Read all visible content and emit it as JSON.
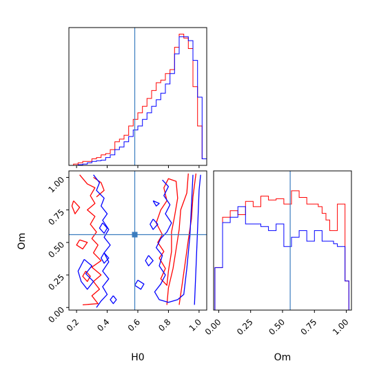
{
  "chart_data": [
    {
      "type": "histogram",
      "panel": "H0 marginal",
      "x_range": [
        0.15,
        1.05
      ],
      "truth_line": 0.58,
      "bin_edges": [
        0.18,
        0.21,
        0.24,
        0.27,
        0.3,
        0.33,
        0.36,
        0.39,
        0.42,
        0.45,
        0.48,
        0.51,
        0.54,
        0.57,
        0.6,
        0.63,
        0.66,
        0.69,
        0.72,
        0.75,
        0.78,
        0.81,
        0.84,
        0.87,
        0.9,
        0.93,
        0.96,
        0.99,
        1.02,
        1.05
      ],
      "series": [
        {
          "color": "#ff0000",
          "values": [
            0.01,
            0.02,
            0.03,
            0.03,
            0.05,
            0.06,
            0.08,
            0.09,
            0.12,
            0.18,
            0.2,
            0.23,
            0.3,
            0.35,
            0.4,
            0.45,
            0.51,
            0.57,
            0.63,
            0.65,
            0.7,
            0.73,
            0.9,
            1.0,
            0.97,
            0.89,
            0.6,
            0.3,
            0.05
          ]
        },
        {
          "color": "#0000ff",
          "values": [
            0.0,
            0.005,
            0.01,
            0.02,
            0.03,
            0.035,
            0.04,
            0.06,
            0.08,
            0.12,
            0.14,
            0.18,
            0.22,
            0.27,
            0.3,
            0.35,
            0.4,
            0.45,
            0.5,
            0.55,
            0.62,
            0.7,
            0.85,
            0.98,
            0.98,
            0.95,
            0.8,
            0.52,
            0.05
          ]
        }
      ]
    },
    {
      "type": "contour",
      "panel": "H0 vs Om",
      "x_range": [
        0.15,
        1.05
      ],
      "y_range": [
        -0.02,
        1.05
      ],
      "xlabel": "H0",
      "ylabel": "Om",
      "x_ticks": [
        0.2,
        0.4,
        0.6,
        0.8,
        1.0
      ],
      "x_tick_labels": [
        "0.2",
        "0.4",
        "0.6",
        "0.8",
        "1.0"
      ],
      "y_ticks": [
        0.0,
        0.25,
        0.5,
        0.75,
        1.0
      ],
      "y_tick_labels": [
        "0.00",
        "0.25",
        "0.50",
        "0.75",
        "1.00"
      ],
      "truth_point": {
        "x": 0.58,
        "y": 0.56
      },
      "contours": [
        {
          "color": "#ff0000",
          "points": [
            [
              0.22,
              1.02
            ],
            [
              0.27,
              0.95
            ],
            [
              0.32,
              0.92
            ],
            [
              0.29,
              0.86
            ],
            [
              0.32,
              0.8
            ],
            [
              0.27,
              0.75
            ],
            [
              0.32,
              0.7
            ],
            [
              0.29,
              0.64
            ],
            [
              0.33,
              0.58
            ],
            [
              0.3,
              0.53
            ],
            [
              0.34,
              0.48
            ],
            [
              0.31,
              0.42
            ],
            [
              0.36,
              0.36
            ],
            [
              0.3,
              0.31
            ],
            [
              0.36,
              0.25
            ],
            [
              0.31,
              0.2
            ],
            [
              0.35,
              0.14
            ],
            [
              0.3,
              0.09
            ],
            [
              0.34,
              0.03
            ],
            [
              0.24,
              0.02
            ]
          ]
        },
        {
          "color": "#ff0000",
          "points": [
            [
              0.31,
              1.0
            ],
            [
              0.36,
              0.96
            ],
            [
              0.38,
              0.9
            ],
            [
              0.33,
              0.85
            ]
          ]
        },
        {
          "color": "#ff0000",
          "points": [
            [
              0.18,
              0.82
            ],
            [
              0.22,
              0.77
            ],
            [
              0.19,
              0.72
            ],
            [
              0.17,
              0.78
            ],
            [
              0.18,
              0.82
            ]
          ]
        },
        {
          "color": "#ff0000",
          "points": [
            [
              0.26,
              0.28
            ],
            [
              0.29,
              0.24
            ],
            [
              0.27,
              0.2
            ],
            [
              0.24,
              0.24
            ],
            [
              0.26,
              0.28
            ]
          ]
        },
        {
          "color": "#ff0000",
          "points": [
            [
              0.22,
              0.52
            ],
            [
              0.27,
              0.5
            ],
            [
              0.24,
              0.45
            ],
            [
              0.2,
              0.48
            ],
            [
              0.22,
              0.52
            ]
          ]
        },
        {
          "color": "#ff0000",
          "points": [
            [
              0.79,
              0.02
            ],
            [
              0.8,
              0.15
            ],
            [
              0.83,
              0.3
            ],
            [
              0.85,
              0.45
            ],
            [
              0.87,
              0.6
            ],
            [
              0.88,
              0.75
            ],
            [
              0.92,
              0.88
            ],
            [
              0.93,
              1.03
            ]
          ]
        },
        {
          "color": "#ff0000",
          "points": [
            [
              0.87,
              0.02
            ],
            [
              0.89,
              0.18
            ],
            [
              0.91,
              0.35
            ],
            [
              0.93,
              0.52
            ],
            [
              0.95,
              0.68
            ],
            [
              0.96,
              0.85
            ],
            [
              0.98,
              1.03
            ]
          ]
        },
        {
          "color": "#ff0000",
          "points": [
            [
              0.72,
              0.65
            ],
            [
              0.76,
              0.56
            ],
            [
              0.73,
              0.5
            ],
            [
              0.77,
              0.43
            ],
            [
              0.74,
              0.38
            ],
            [
              0.78,
              0.3
            ],
            [
              0.75,
              0.22
            ],
            [
              0.79,
              0.17
            ],
            [
              0.8,
              0.28
            ],
            [
              0.82,
              0.43
            ],
            [
              0.82,
              0.58
            ],
            [
              0.84,
              0.7
            ],
            [
              0.86,
              0.84
            ],
            [
              0.85,
              0.97
            ],
            [
              0.8,
              0.99
            ],
            [
              0.77,
              0.92
            ],
            [
              0.79,
              0.82
            ],
            [
              0.75,
              0.75
            ],
            [
              0.72,
              0.65
            ]
          ]
        },
        {
          "color": "#0000ff",
          "points": [
            [
              0.31,
              1.02
            ],
            [
              0.35,
              0.96
            ],
            [
              0.33,
              0.9
            ],
            [
              0.38,
              0.84
            ],
            [
              0.36,
              0.78
            ],
            [
              0.4,
              0.72
            ],
            [
              0.37,
              0.67
            ],
            [
              0.41,
              0.6
            ],
            [
              0.38,
              0.54
            ],
            [
              0.42,
              0.48
            ],
            [
              0.38,
              0.42
            ],
            [
              0.41,
              0.35
            ],
            [
              0.37,
              0.28
            ],
            [
              0.41,
              0.22
            ],
            [
              0.37,
              0.16
            ],
            [
              0.4,
              0.1
            ],
            [
              0.36,
              0.05
            ],
            [
              0.33,
              0.0
            ]
          ]
        },
        {
          "color": "#0000ff",
          "points": [
            [
              0.25,
              0.37
            ],
            [
              0.3,
              0.32
            ],
            [
              0.26,
              0.26
            ],
            [
              0.31,
              0.2
            ],
            [
              0.27,
              0.14
            ],
            [
              0.23,
              0.2
            ],
            [
              0.21,
              0.28
            ],
            [
              0.25,
              0.37
            ]
          ]
        },
        {
          "color": "#0000ff",
          "points": [
            [
              0.37,
              0.65
            ],
            [
              0.4,
              0.61
            ],
            [
              0.38,
              0.57
            ],
            [
              0.35,
              0.61
            ],
            [
              0.37,
              0.65
            ]
          ]
        },
        {
          "color": "#0000ff",
          "points": [
            [
              0.38,
              0.42
            ],
            [
              0.41,
              0.38
            ],
            [
              0.38,
              0.34
            ],
            [
              0.36,
              0.38
            ],
            [
              0.38,
              0.42
            ]
          ]
        },
        {
          "color": "#0000ff",
          "points": [
            [
              0.44,
              0.09
            ],
            [
              0.46,
              0.06
            ],
            [
              0.44,
              0.03
            ],
            [
              0.42,
              0.06
            ],
            [
              0.44,
              0.09
            ]
          ]
        },
        {
          "color": "#0000ff",
          "points": [
            [
              0.76,
              0.98
            ],
            [
              0.8,
              0.93
            ],
            [
              0.77,
              0.86
            ],
            [
              0.81,
              0.79
            ],
            [
              0.78,
              0.72
            ],
            [
              0.82,
              0.65
            ],
            [
              0.79,
              0.58
            ],
            [
              0.75,
              0.53
            ],
            [
              0.72,
              0.46
            ],
            [
              0.76,
              0.4
            ],
            [
              0.74,
              0.32
            ],
            [
              0.78,
              0.25
            ],
            [
              0.75,
              0.18
            ],
            [
              0.71,
              0.12
            ],
            [
              0.74,
              0.06
            ],
            [
              0.8,
              0.04
            ],
            [
              0.86,
              0.06
            ],
            [
              0.9,
              0.1
            ],
            [
              0.92,
              0.3
            ],
            [
              0.94,
              0.55
            ],
            [
              0.95,
              0.78
            ],
            [
              0.96,
              1.02
            ]
          ]
        },
        {
          "color": "#0000ff",
          "points": [
            [
              0.6,
              0.21
            ],
            [
              0.64,
              0.18
            ],
            [
              0.62,
              0.14
            ],
            [
              0.58,
              0.17
            ],
            [
              0.6,
              0.21
            ]
          ]
        },
        {
          "color": "#0000ff",
          "points": [
            [
              0.67,
              0.4
            ],
            [
              0.7,
              0.36
            ],
            [
              0.67,
              0.32
            ],
            [
              0.65,
              0.36
            ],
            [
              0.67,
              0.4
            ]
          ]
        },
        {
          "color": "#0000ff",
          "points": [
            [
              0.7,
              0.68
            ],
            [
              0.73,
              0.64
            ],
            [
              0.7,
              0.6
            ],
            [
              0.68,
              0.64
            ],
            [
              0.7,
              0.68
            ]
          ]
        },
        {
          "color": "#0000ff",
          "points": [
            [
              0.7,
              0.82
            ],
            [
              0.74,
              0.8
            ],
            [
              0.72,
              0.78
            ],
            [
              0.7,
              0.82
            ]
          ]
        },
        {
          "color": "#0000ff",
          "points": [
            [
              0.97,
              0.02
            ],
            [
              0.98,
              0.3
            ],
            [
              0.99,
              0.6
            ],
            [
              1.0,
              0.9
            ],
            [
              1.01,
              1.02
            ]
          ]
        }
      ]
    },
    {
      "type": "histogram",
      "panel": "Om marginal",
      "xlabel": "Om",
      "x_range": [
        -0.04,
        1.04
      ],
      "x_ticks": [
        0.0,
        0.25,
        0.5,
        0.75,
        1.0
      ],
      "x_tick_labels": [
        "0.00",
        "0.25",
        "0.50",
        "0.75",
        "1.00"
      ],
      "truth_line": 0.56,
      "bin_edges": [
        -0.03,
        0.0,
        0.03,
        0.06,
        0.09,
        0.12,
        0.15,
        0.18,
        0.21,
        0.24,
        0.27,
        0.3,
        0.33,
        0.36,
        0.39,
        0.42,
        0.45,
        0.48,
        0.51,
        0.54,
        0.57,
        0.6,
        0.63,
        0.66,
        0.69,
        0.72,
        0.75,
        0.78,
        0.81,
        0.84,
        0.87,
        0.9,
        0.93,
        0.96,
        0.99,
        1.02
      ],
      "series": [
        {
          "color": "#ff0000",
          "values": [
            0.32,
            0.32,
            0.7,
            0.7,
            0.75,
            0.75,
            0.72,
            0.72,
            0.82,
            0.82,
            0.78,
            0.78,
            0.86,
            0.86,
            0.83,
            0.83,
            0.84,
            0.84,
            0.8,
            0.8,
            0.9,
            0.9,
            0.85,
            0.85,
            0.8,
            0.8,
            0.8,
            0.78,
            0.73,
            0.68,
            0.6,
            0.6,
            0.8,
            0.8,
            0.22
          ]
        },
        {
          "color": "#0000ff",
          "values": [
            0.32,
            0.32,
            0.66,
            0.66,
            0.7,
            0.7,
            0.78,
            0.78,
            0.65,
            0.65,
            0.65,
            0.65,
            0.63,
            0.63,
            0.6,
            0.6,
            0.65,
            0.65,
            0.48,
            0.48,
            0.55,
            0.55,
            0.6,
            0.6,
            0.52,
            0.52,
            0.6,
            0.6,
            0.52,
            0.52,
            0.52,
            0.5,
            0.48,
            0.48,
            0.22
          ]
        }
      ]
    }
  ]
}
